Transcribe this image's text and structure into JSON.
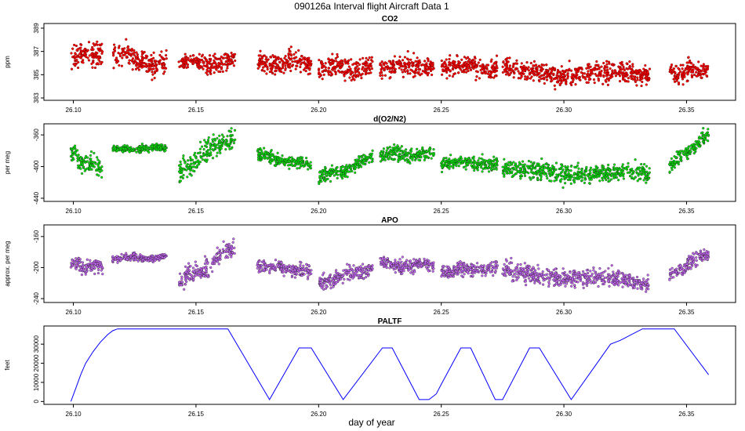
{
  "title": "090126a   Interval flight Aircraft Data 1",
  "xlabel": "day of year",
  "colors": {
    "co2": "#ff0000",
    "o2n2": "#00ee00",
    "apo": "#cc66ff",
    "paltf": "#0000ff",
    "outline": "#660000"
  },
  "chart_data": [
    {
      "type": "scatter",
      "title": "CO2",
      "ylabel": "ppm",
      "xlim": [
        26.088,
        26.37
      ],
      "ylim": [
        382.8,
        389.4
      ],
      "x_ticks": [
        "26.10",
        "26.15",
        "26.20",
        "26.25",
        "26.30",
        "26.35"
      ],
      "x_tick_values": [
        26.1,
        26.15,
        26.2,
        26.25,
        26.3,
        26.35
      ],
      "y_ticks": [
        "383",
        "385",
        "387",
        "389"
      ],
      "y_tick_values": [
        383,
        385,
        387,
        389
      ],
      "segments": [
        {
          "x0": 26.099,
          "x1": 26.112,
          "y0": 386.6,
          "y1": 386.9,
          "spread": 0.9
        },
        {
          "x0": 26.116,
          "x1": 26.138,
          "y0": 386.8,
          "y1": 385.8,
          "spread": 0.8
        },
        {
          "x0": 26.143,
          "x1": 26.166,
          "y0": 386.0,
          "y1": 386.0,
          "spread": 0.7
        },
        {
          "x0": 26.175,
          "x1": 26.197,
          "y0": 386.0,
          "y1": 386.0,
          "spread": 0.8
        },
        {
          "x0": 26.2,
          "x1": 26.222,
          "y0": 385.6,
          "y1": 385.6,
          "spread": 0.8
        },
        {
          "x0": 26.225,
          "x1": 26.247,
          "y0": 385.7,
          "y1": 385.8,
          "spread": 0.8
        },
        {
          "x0": 26.25,
          "x1": 26.273,
          "y0": 385.8,
          "y1": 385.6,
          "spread": 0.7
        },
        {
          "x0": 26.275,
          "x1": 26.335,
          "y0": 385.3,
          "y1": 385.0,
          "spread": 0.8
        },
        {
          "x0": 26.343,
          "x1": 26.359,
          "y0": 385.2,
          "y1": 385.4,
          "spread": 0.8
        }
      ]
    },
    {
      "type": "scatter",
      "title": "d(O2/N2)",
      "ylabel": "per meg",
      "xlim": [
        26.088,
        26.37
      ],
      "ylim": [
        -444,
        -346
      ],
      "x_ticks": [
        "26.10",
        "26.15",
        "26.20",
        "26.25",
        "26.30",
        "26.35"
      ],
      "x_tick_values": [
        26.1,
        26.15,
        26.2,
        26.25,
        26.3,
        26.35
      ],
      "y_ticks": [
        "-440",
        "-400",
        "-360"
      ],
      "y_tick_values": [
        -440,
        -400,
        -360
      ],
      "segments": [
        {
          "x0": 26.099,
          "x1": 26.112,
          "y0": -385,
          "y1": -405,
          "spread": 10
        },
        {
          "x0": 26.116,
          "x1": 26.138,
          "y0": -378,
          "y1": -376,
          "spread": 4
        },
        {
          "x0": 26.143,
          "x1": 26.166,
          "y0": -405,
          "y1": -360,
          "spread": 12
        },
        {
          "x0": 26.175,
          "x1": 26.197,
          "y0": -385,
          "y1": -400,
          "spread": 7
        },
        {
          "x0": 26.2,
          "x1": 26.222,
          "y0": -415,
          "y1": -390,
          "spread": 8
        },
        {
          "x0": 26.225,
          "x1": 26.247,
          "y0": -385,
          "y1": -385,
          "spread": 8
        },
        {
          "x0": 26.25,
          "x1": 26.273,
          "y0": -395,
          "y1": -395,
          "spread": 8
        },
        {
          "x0": 26.275,
          "x1": 26.335,
          "y0": -405,
          "y1": -410,
          "spread": 10
        },
        {
          "x0": 26.343,
          "x1": 26.359,
          "y0": -400,
          "y1": -360,
          "spread": 8
        }
      ]
    },
    {
      "type": "scatter",
      "title": "APO",
      "ylabel": "approx. per meg",
      "xlim": [
        26.088,
        26.37
      ],
      "ylim": [
        -245,
        -145
      ],
      "x_ticks": [
        "26.10",
        "26.15",
        "26.20",
        "26.25",
        "26.30",
        "26.35"
      ],
      "x_tick_values": [
        26.1,
        26.15,
        26.2,
        26.25,
        26.3,
        26.35
      ],
      "y_ticks": [
        "-240",
        "-200",
        "-160"
      ],
      "y_tick_values": [
        -240,
        -200,
        -160
      ],
      "segments": [
        {
          "x0": 26.099,
          "x1": 26.112,
          "y0": -195,
          "y1": -200,
          "spread": 9
        },
        {
          "x0": 26.116,
          "x1": 26.138,
          "y0": -188,
          "y1": -187,
          "spread": 4
        },
        {
          "x0": 26.143,
          "x1": 26.166,
          "y0": -220,
          "y1": -175,
          "spread": 12
        },
        {
          "x0": 26.175,
          "x1": 26.197,
          "y0": -198,
          "y1": -205,
          "spread": 7
        },
        {
          "x0": 26.2,
          "x1": 26.222,
          "y0": -220,
          "y1": -200,
          "spread": 8
        },
        {
          "x0": 26.225,
          "x1": 26.247,
          "y0": -195,
          "y1": -198,
          "spread": 8
        },
        {
          "x0": 26.25,
          "x1": 26.273,
          "y0": -205,
          "y1": -200,
          "spread": 8
        },
        {
          "x0": 26.275,
          "x1": 26.335,
          "y0": -205,
          "y1": -220,
          "spread": 10
        },
        {
          "x0": 26.343,
          "x1": 26.359,
          "y0": -210,
          "y1": -180,
          "spread": 8
        }
      ]
    },
    {
      "type": "line",
      "title": "PALTF",
      "ylabel": "feet",
      "xlim": [
        26.088,
        26.37
      ],
      "ylim": [
        -1500,
        39500
      ],
      "x_ticks": [
        "26.10",
        "26.15",
        "26.20",
        "26.25",
        "26.30",
        "26.35"
      ],
      "x_tick_values": [
        26.1,
        26.15,
        26.2,
        26.25,
        26.3,
        26.35
      ],
      "y_ticks": [
        "0",
        "10000",
        "20000",
        "30000"
      ],
      "y_tick_values": [
        0,
        10000,
        20000,
        30000
      ],
      "x": [
        26.099,
        26.101,
        26.103,
        26.105,
        26.108,
        26.111,
        26.114,
        26.116,
        26.118,
        26.163,
        26.18,
        26.192,
        26.197,
        26.21,
        26.226,
        26.23,
        26.241,
        26.245,
        26.248,
        26.25,
        26.258,
        26.262,
        26.272,
        26.275,
        26.286,
        26.29,
        26.303,
        26.319,
        26.323,
        26.332,
        26.345,
        26.359
      ],
      "y": [
        0,
        7000,
        14000,
        20000,
        26000,
        31000,
        35000,
        37000,
        38000,
        38000,
        1000,
        28000,
        28000,
        1000,
        28000,
        28000,
        1000,
        1000,
        4000,
        9000,
        28000,
        28000,
        1000,
        1000,
        28000,
        28000,
        1000,
        30000,
        32000,
        38000,
        38000,
        14000
      ]
    }
  ]
}
